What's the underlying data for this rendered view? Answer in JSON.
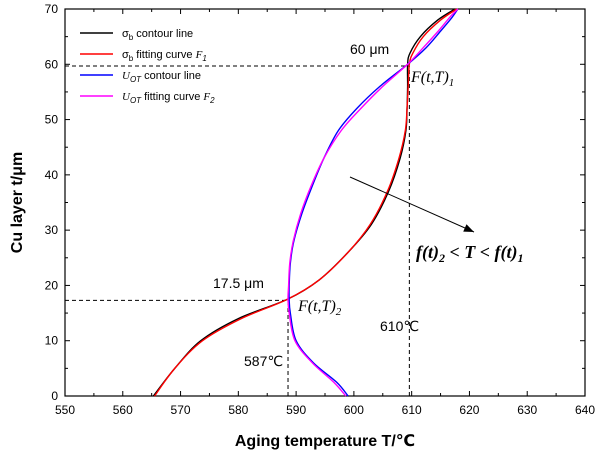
{
  "chart_data": {
    "type": "line",
    "xlabel": "Aging temperature T/℃",
    "ylabel": "Cu layer t/μm",
    "xlim": [
      550,
      640
    ],
    "ylim": [
      0,
      70
    ],
    "xticks": [
      550,
      560,
      570,
      580,
      590,
      600,
      610,
      620,
      630,
      640
    ],
    "yticks": [
      0,
      10,
      20,
      30,
      40,
      50,
      60,
      70
    ],
    "grid": false,
    "legend_position": "top-left",
    "series": [
      {
        "name": "σb contour line",
        "color": "#000000",
        "points": [
          [
            565.3,
            0
          ],
          [
            569,
            5
          ],
          [
            573.5,
            10
          ],
          [
            580,
            14
          ],
          [
            588.5,
            17.5
          ],
          [
            594,
            21
          ],
          [
            599,
            26
          ],
          [
            603,
            31
          ],
          [
            606,
            37
          ],
          [
            608,
            43
          ],
          [
            609,
            48
          ],
          [
            609.2,
            52
          ],
          [
            609.3,
            56
          ],
          [
            609.3,
            60
          ],
          [
            609.7,
            62
          ],
          [
            611.5,
            65
          ],
          [
            614.5,
            68
          ],
          [
            617.5,
            70
          ]
        ]
      },
      {
        "name": "σb fitting curve F1",
        "color": "#ff0000",
        "points": [
          [
            565.5,
            0
          ],
          [
            569,
            5
          ],
          [
            573.8,
            10
          ],
          [
            580.5,
            14
          ],
          [
            588.5,
            17.5
          ],
          [
            594,
            21
          ],
          [
            599,
            26
          ],
          [
            602.8,
            31
          ],
          [
            605.8,
            37
          ],
          [
            607.8,
            43
          ],
          [
            608.9,
            48
          ],
          [
            609.2,
            52
          ],
          [
            609.4,
            56
          ],
          [
            609.6,
            60
          ],
          [
            610.2,
            62
          ],
          [
            612,
            65
          ],
          [
            615,
            68
          ],
          [
            617.8,
            70
          ]
        ]
      },
      {
        "name": "UOT contour line",
        "color": "#0000ff",
        "points": [
          [
            599,
            0
          ],
          [
            597,
            2.5
          ],
          [
            593,
            6
          ],
          [
            590,
            10
          ],
          [
            589,
            15
          ],
          [
            588.8,
            17.5
          ],
          [
            588.8,
            20
          ],
          [
            589,
            24
          ],
          [
            589.6,
            28
          ],
          [
            591,
            33
          ],
          [
            592.8,
            38
          ],
          [
            594.8,
            43
          ],
          [
            597.3,
            48
          ],
          [
            600.5,
            52
          ],
          [
            604.5,
            56
          ],
          [
            609.3,
            60
          ],
          [
            612.5,
            63
          ],
          [
            615,
            66
          ],
          [
            617,
            68.5
          ],
          [
            618,
            70
          ]
        ]
      },
      {
        "name": "UOT fitting curve F2",
        "color": "#ff00ff",
        "points": [
          [
            598.6,
            0
          ],
          [
            596.5,
            2.5
          ],
          [
            592.8,
            6
          ],
          [
            589.8,
            10
          ],
          [
            588.8,
            15
          ],
          [
            588.6,
            17.5
          ],
          [
            588.7,
            20
          ],
          [
            588.9,
            24
          ],
          [
            589.5,
            28
          ],
          [
            590.8,
            33
          ],
          [
            592.6,
            38
          ],
          [
            594.8,
            43
          ],
          [
            597.8,
            48
          ],
          [
            601.2,
            52
          ],
          [
            605,
            56
          ],
          [
            609.3,
            60
          ],
          [
            612,
            63
          ],
          [
            614.6,
            66
          ],
          [
            616.6,
            68.5
          ],
          [
            618,
            70
          ]
        ]
      }
    ],
    "guide_lines": [
      {
        "from": [
          550,
          59.7
        ],
        "to": [
          609.5,
          59.7
        ]
      },
      {
        "from": [
          609.6,
          0
        ],
        "to": [
          609.6,
          59.7
        ]
      },
      {
        "from": [
          550,
          17.3
        ],
        "to": [
          588.6,
          17.3
        ]
      },
      {
        "from": [
          588.6,
          0
        ],
        "to": [
          588.6,
          17.3
        ]
      }
    ],
    "annotations": {
      "label_60": "60 μm",
      "label_17_5": "17.5 μm",
      "label_610": "610℃",
      "label_587": "587℃",
      "point_upper": "F(t,T)1",
      "point_lower": "F(t,T)2",
      "inequality": "f(t)2 < T < f(t)1"
    }
  },
  "legend": [
    {
      "prefix": "σ",
      "sub": "b",
      "text": " contour line",
      "color": "#000000"
    },
    {
      "prefix": "σ",
      "sub": "b",
      "text": " fitting curve ",
      "math": "F",
      "mathsub": "1",
      "color": "#ff0000"
    },
    {
      "prefix": "U",
      "sub": "OT",
      "text": " contour line",
      "color": "#0000ff"
    },
    {
      "prefix": "U",
      "sub": "OT",
      "text": " fitting curve  ",
      "math": "F",
      "mathsub": "2",
      "color": "#ff00ff"
    }
  ]
}
